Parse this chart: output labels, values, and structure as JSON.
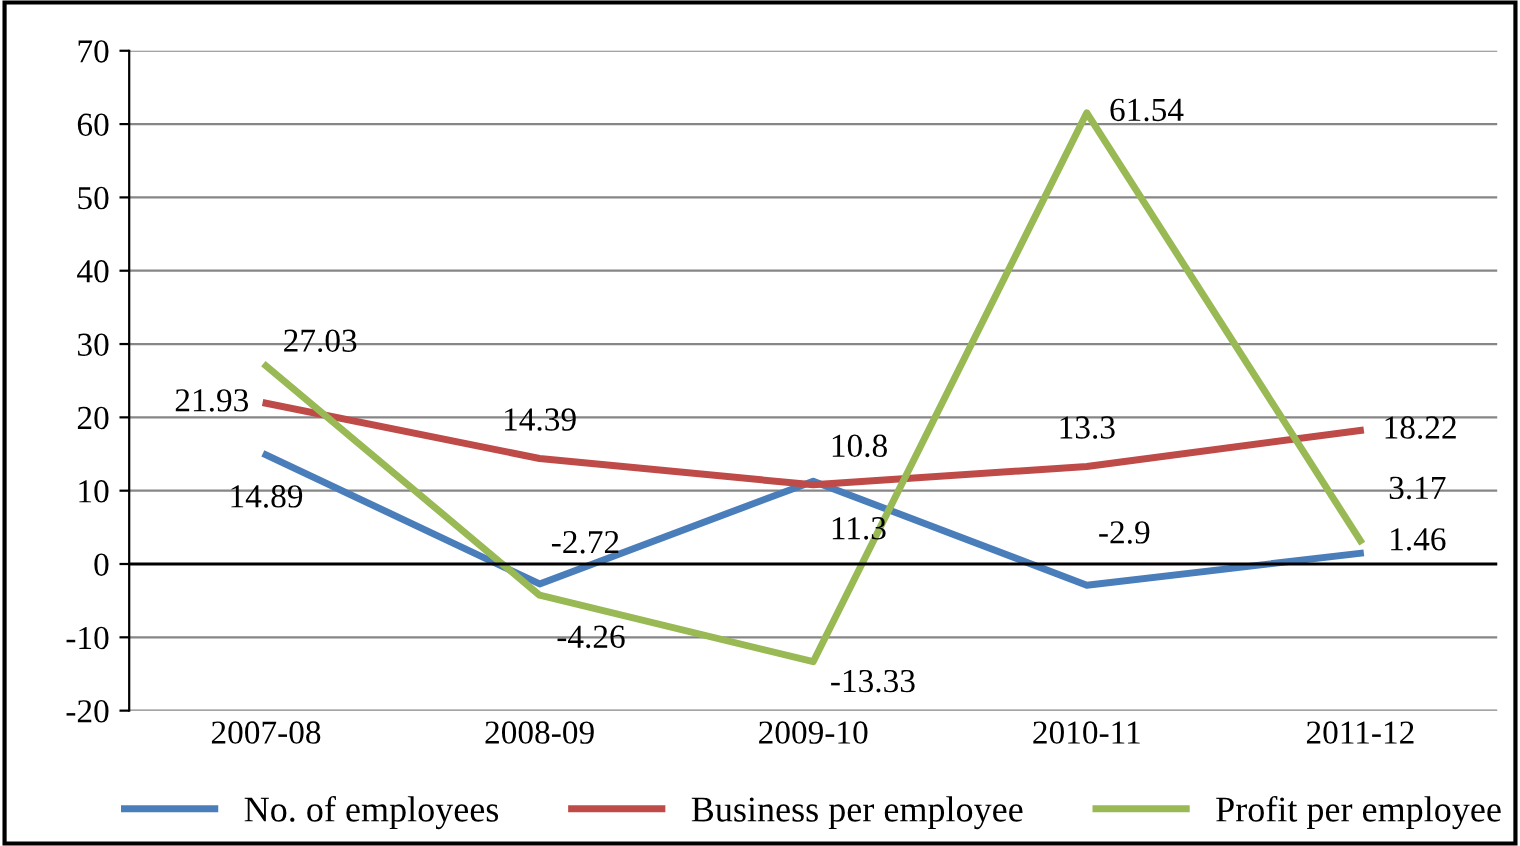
{
  "chart_data": {
    "type": "line",
    "categories": [
      "2007-08",
      "2008-09",
      "2009-10",
      "2010-11",
      "2011-12"
    ],
    "series": [
      {
        "name": "No. of employees",
        "color": "#4a7ebb",
        "values": [
          14.89,
          -2.72,
          11.3,
          -2.9,
          1.46
        ]
      },
      {
        "name": "Business per employee",
        "color": "#be4b48",
        "values": [
          21.93,
          14.39,
          10.8,
          13.3,
          18.22
        ]
      },
      {
        "name": "Profit per employee",
        "color": "#98b954",
        "values": [
          27.03,
          -4.26,
          -13.33,
          61.54,
          3.17
        ]
      }
    ],
    "ylim": [
      -20,
      70
    ],
    "yticks": [
      -20,
      -10,
      0,
      10,
      20,
      30,
      40,
      50,
      60,
      70
    ],
    "grid": "y",
    "legend": "bottom",
    "data_labels": true,
    "marker": "none",
    "line_style": "solid"
  }
}
